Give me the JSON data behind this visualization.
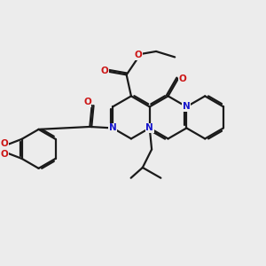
{
  "bg": "#ececec",
  "bc": "#1a1a1a",
  "nc": "#1515cc",
  "oc": "#cc1515",
  "lw": 1.6,
  "lw_inner": 1.4,
  "fs": 7.5,
  "figsize": [
    3.0,
    3.0
  ],
  "dpi": 100,
  "xlim": [
    0,
    10
  ],
  "ylim": [
    0,
    10
  ]
}
